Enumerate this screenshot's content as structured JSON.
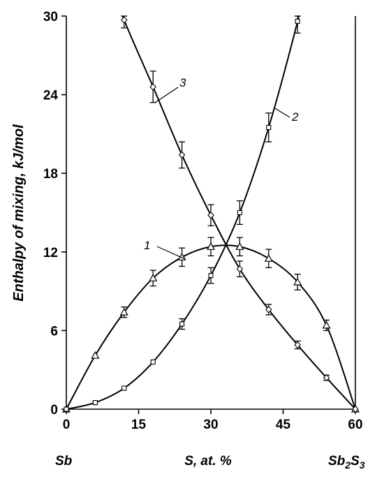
{
  "chart_data": {
    "type": "line",
    "title": "",
    "xlabel": "S, at. %",
    "ylabel": "Enthalpy of mixing, kJ/mol",
    "xlim": [
      0,
      60
    ],
    "ylim": [
      0,
      30
    ],
    "x_ticks": [
      "0",
      "15",
      "30",
      "45",
      "60"
    ],
    "y_ticks": [
      "0",
      "6",
      "12",
      "18",
      "24",
      "30"
    ],
    "grid": false,
    "left_end_label": "Sb",
    "right_end_label_base": "Sb",
    "right_end_label_sub1": "2",
    "right_end_label_mid": "S",
    "right_end_label_sub2": "3",
    "series": [
      {
        "name": "1",
        "marker": "triangle",
        "points": [
          {
            "x": 0,
            "y": 0
          },
          {
            "x": 6,
            "y": 4.1
          },
          {
            "x": 12,
            "y": 7.4,
            "err": 0.4
          },
          {
            "x": 18,
            "y": 10.0,
            "err": 0.6
          },
          {
            "x": 24,
            "y": 11.6,
            "err": 0.7
          },
          {
            "x": 30,
            "y": 12.4,
            "err": 0.7
          },
          {
            "x": 36,
            "y": 12.4,
            "err": 0.7
          },
          {
            "x": 42,
            "y": 11.5,
            "err": 0.7
          },
          {
            "x": 48,
            "y": 9.7,
            "err": 0.6
          },
          {
            "x": 54,
            "y": 6.4,
            "err": 0.4
          },
          {
            "x": 60,
            "y": 0
          }
        ]
      },
      {
        "name": "2",
        "marker": "square",
        "points": [
          {
            "x": 0,
            "y": 0
          },
          {
            "x": 6,
            "y": 0.5
          },
          {
            "x": 12,
            "y": 1.6
          },
          {
            "x": 18,
            "y": 3.6
          },
          {
            "x": 24,
            "y": 6.5,
            "err": 0.4
          },
          {
            "x": 30,
            "y": 10.2,
            "err": 0.6
          },
          {
            "x": 36,
            "y": 15.0,
            "err": 0.9
          },
          {
            "x": 42,
            "y": 21.5,
            "err": 1.1
          },
          {
            "x": 48,
            "y": 29.6,
            "err": 0.9
          }
        ]
      },
      {
        "name": "3",
        "marker": "diamond",
        "points": [
          {
            "x": 12,
            "y": 29.7,
            "err": 0.6
          },
          {
            "x": 18,
            "y": 24.6,
            "err": 1.2
          },
          {
            "x": 24,
            "y": 19.4,
            "err": 1.0
          },
          {
            "x": 30,
            "y": 14.8,
            "err": 0.8
          },
          {
            "x": 36,
            "y": 10.7,
            "err": 0.6
          },
          {
            "x": 42,
            "y": 7.6,
            "err": 0.4
          },
          {
            "x": 48,
            "y": 4.9,
            "err": 0.3
          },
          {
            "x": 54,
            "y": 2.4,
            "err": 0.2
          },
          {
            "x": 60,
            "y": 0
          }
        ]
      }
    ]
  }
}
